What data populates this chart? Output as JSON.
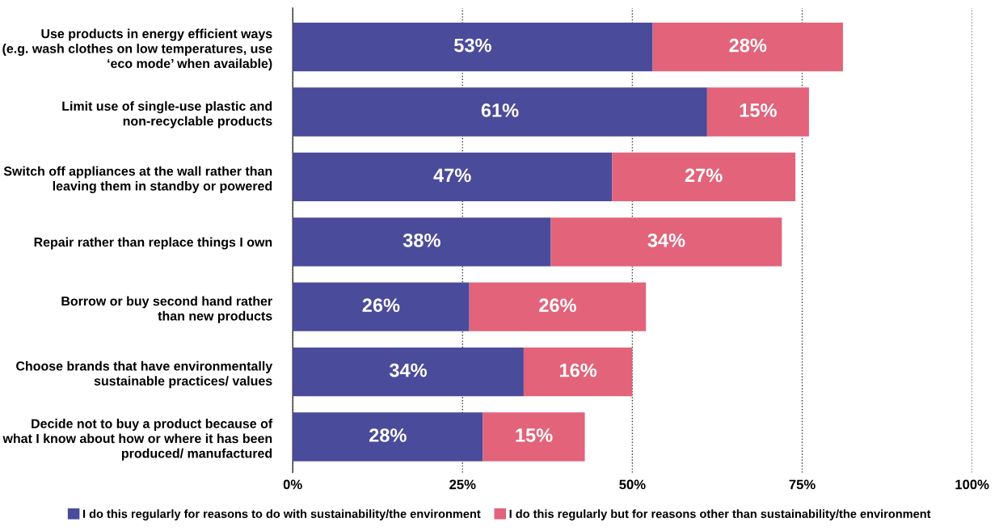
{
  "chart_data": {
    "type": "bar",
    "orientation": "horizontal",
    "stacked": true,
    "categories": [
      "Use products in energy efficient ways\n(e.g. wash clothes on low temperatures, use\n‘eco mode’ when available)",
      "Limit use of single-use plastic and\nnon-recyclable products",
      "Switch off appliances at the wall rather than\nleaving them in standby or powered",
      "Repair rather than replace things I own",
      "Borrow or buy second hand rather\nthan new products",
      "Choose brands that have environmentally\nsustainable practices/ values",
      "Decide not to buy a product because of\nwhat I know about how or where it has been\nproduced/ manufactured"
    ],
    "series": [
      {
        "name": "I do this regularly for reasons to do with sustainability/the environment",
        "color": "#4b4b9b",
        "values": [
          53,
          61,
          47,
          38,
          26,
          34,
          28
        ],
        "value_labels": [
          "53%",
          "61%",
          "47%",
          "38%",
          "26%",
          "34%",
          "28%"
        ]
      },
      {
        "name": "I do this regularly but for reasons other than sustainability/the environment",
        "color": "#e2637a",
        "values": [
          28,
          15,
          27,
          34,
          26,
          16,
          15
        ],
        "value_labels": [
          "28%",
          "15%",
          "27%",
          "34%",
          "26%",
          "16%",
          "15%"
        ]
      }
    ],
    "xlim": [
      0,
      100
    ],
    "xticks": [
      {
        "value": 0,
        "label": "0%"
      },
      {
        "value": 25,
        "label": "25%"
      },
      {
        "value": 50,
        "label": "50%"
      },
      {
        "value": 75,
        "label": "75%"
      },
      {
        "value": 100,
        "label": "100%"
      }
    ],
    "grid": "x",
    "legend": "bottom"
  }
}
